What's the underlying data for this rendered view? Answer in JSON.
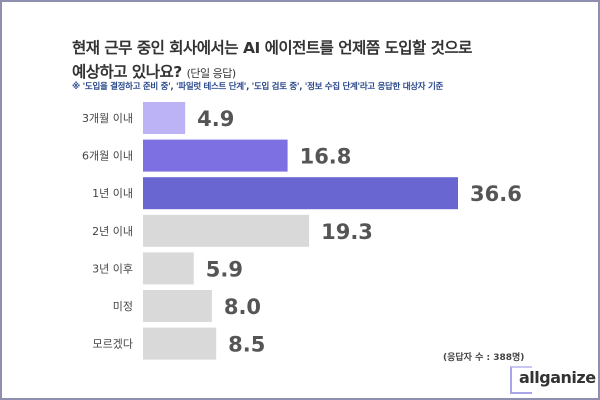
{
  "title_line1": "현재 근무 중인 회사에서는 AI 에이전트를 언제쯤 도입할 것으로",
  "title_line2": "예상하고 있나요?",
  "title_sub": "(단일 응답)",
  "note": "※ '도입을 결정하고 준비 중', '파일럿 테스트 단계', '도입 검토 중', '정보 수집 단계'라고 응답한 대상자 기준",
  "respondents": "(응답자 수 : 388명)",
  "logo": "allganize",
  "chart_data": {
    "type": "bar",
    "orientation": "horizontal",
    "categories": [
      "3개월 이내",
      "6개월 이내",
      "1년 이내",
      "2년 이내",
      "3년 이후",
      "미정",
      "모르겠다"
    ],
    "values": [
      4.9,
      16.8,
      36.6,
      19.3,
      5.9,
      8.0,
      8.5
    ],
    "value_labels": [
      "4.9",
      "16.8",
      "36.6",
      "19.3",
      "5.9",
      "8.0",
      "8.5"
    ],
    "colors": [
      "#bcb2f6",
      "#7c70e2",
      "#6966d2",
      "#d9d9d9",
      "#d9d9d9",
      "#d9d9d9",
      "#d9d9d9"
    ],
    "xlim": [
      0,
      40
    ],
    "grid": false
  }
}
